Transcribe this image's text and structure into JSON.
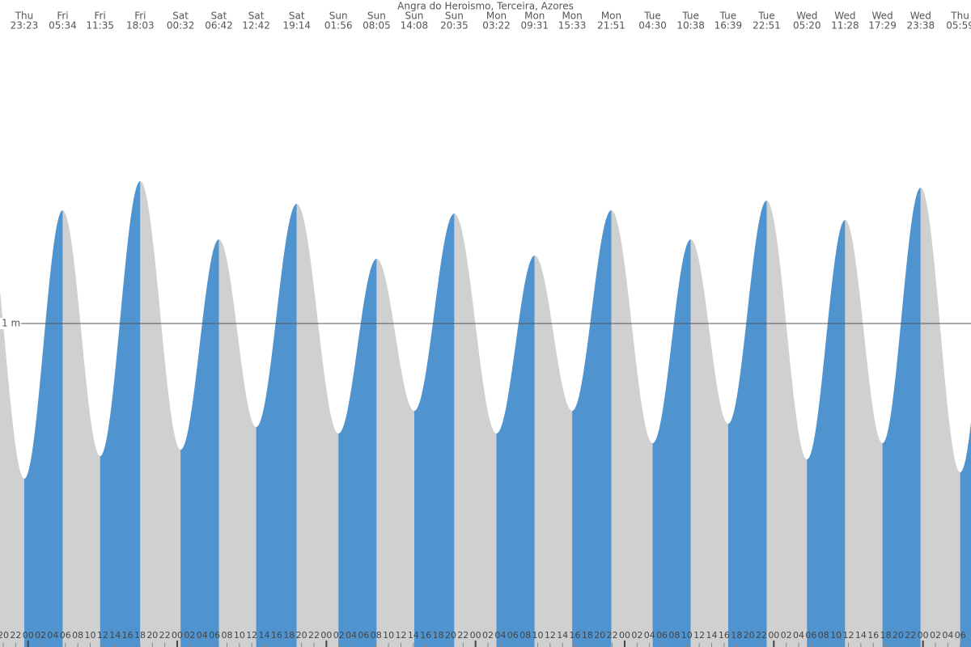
{
  "chart_data": {
    "type": "tide",
    "title": "Angra do Heroismo, Terceira, Azores",
    "ylim": [
      0,
      2
    ],
    "yticks": [
      {
        "value": 1,
        "label": "1 m"
      }
    ],
    "rising_color": "#4f93cf",
    "falling_color": "#d0d0d0",
    "extremes": [
      {
        "day": "Thu",
        "time": "23:23",
        "height": 0.52
      },
      {
        "day": "Fri",
        "time": "05:34",
        "height": 1.35
      },
      {
        "day": "Fri",
        "time": "11:35",
        "height": 0.59
      },
      {
        "day": "Fri",
        "time": "18:03",
        "height": 1.44
      },
      {
        "day": "Sat",
        "time": "00:32",
        "height": 0.61
      },
      {
        "day": "Sat",
        "time": "06:42",
        "height": 1.26
      },
      {
        "day": "Sat",
        "time": "12:42",
        "height": 0.68
      },
      {
        "day": "Sat",
        "time": "19:14",
        "height": 1.37
      },
      {
        "day": "Sun",
        "time": "01:56",
        "height": 0.66
      },
      {
        "day": "Sun",
        "time": "08:05",
        "height": 1.2
      },
      {
        "day": "Sun",
        "time": "14:08",
        "height": 0.73
      },
      {
        "day": "Sun",
        "time": "20:35",
        "height": 1.34
      },
      {
        "day": "Mon",
        "time": "03:22",
        "height": 0.66
      },
      {
        "day": "Mon",
        "time": "09:31",
        "height": 1.21
      },
      {
        "day": "Mon",
        "time": "15:33",
        "height": 0.73
      },
      {
        "day": "Mon",
        "time": "21:51",
        "height": 1.35
      },
      {
        "day": "Tue",
        "time": "04:30",
        "height": 0.63
      },
      {
        "day": "Tue",
        "time": "10:38",
        "height": 1.26
      },
      {
        "day": "Tue",
        "time": "16:39",
        "height": 0.69
      },
      {
        "day": "Tue",
        "time": "22:51",
        "height": 1.38
      },
      {
        "day": "Wed",
        "time": "05:20",
        "height": 0.58
      },
      {
        "day": "Wed",
        "time": "11:28",
        "height": 1.32
      },
      {
        "day": "Wed",
        "time": "17:29",
        "height": 0.63
      },
      {
        "day": "Wed",
        "time": "23:38",
        "height": 1.42
      },
      {
        "day": "Thu",
        "time": "05:59",
        "height": 0.54
      }
    ],
    "hour_labels": [
      "20",
      "22",
      "00",
      "02",
      "04",
      "06",
      "08",
      "10",
      "12",
      "14",
      "16",
      "18",
      "20",
      "22",
      "00",
      "02",
      "04",
      "06",
      "08",
      "10",
      "12",
      "14",
      "16",
      "18",
      "20",
      "22",
      "00",
      "02",
      "04",
      "06",
      "08",
      "10",
      "12",
      "14",
      "16",
      "18",
      "20",
      "22",
      "00",
      "02",
      "04",
      "06",
      "08",
      "10",
      "12",
      "14",
      "16",
      "18",
      "20",
      "22",
      "00",
      "02",
      "04",
      "06",
      "08",
      "10",
      "12",
      "14",
      "16",
      "18",
      "20",
      "22",
      "00",
      "02",
      "04",
      "06",
      "08",
      "10",
      "12",
      "14",
      "16",
      "18",
      "20",
      "22",
      "00",
      "02",
      "04",
      "06"
    ]
  }
}
